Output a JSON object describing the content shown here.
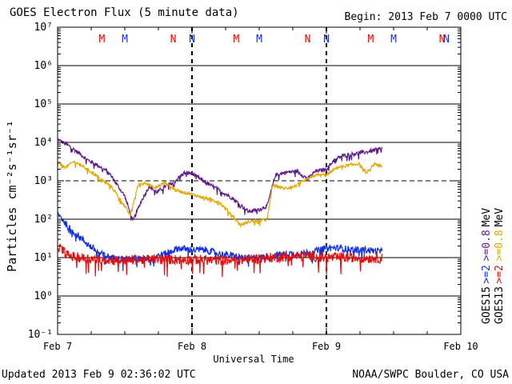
{
  "title": "GOES Electron Flux (5 minute data)",
  "begin": "Begin: 2013 Feb 7 0000 UTC",
  "updated": "Updated 2013 Feb  9 02:36:02 UTC",
  "source": "NOAA/SWPC Boulder, CO USA",
  "colors": {
    "goes15_ge08": "#5c1a8c",
    "goes13_ge08": "#e0a800",
    "goes15_ge2": "#1030e0",
    "goes13_ge2": "#e01010"
  },
  "chart_data": {
    "type": "line",
    "title": "GOES Electron Flux (5 minute data)",
    "xlabel": "Universal Time",
    "ylabel": "Particles cm⁻²s⁻¹sr⁻¹",
    "x_unit": "days since 2013 Feb 7 0000 UTC",
    "xlim": [
      0,
      3
    ],
    "ylim_log10": [
      -1,
      7
    ],
    "yscale": "log",
    "x_ticks": [
      {
        "x": 0,
        "label": "Feb 7"
      },
      {
        "x": 1,
        "label": "Feb 8"
      },
      {
        "x": 2,
        "label": "Feb 9"
      },
      {
        "x": 3,
        "label": "Feb 10"
      }
    ],
    "y_ticks": [
      {
        "exp": 7,
        "label": "10⁷"
      },
      {
        "exp": 6,
        "label": "10⁶"
      },
      {
        "exp": 5,
        "label": "10⁵"
      },
      {
        "exp": 4,
        "label": "10⁴"
      },
      {
        "exp": 3,
        "label": "10³"
      },
      {
        "exp": 2,
        "label": "10²"
      },
      {
        "exp": 1,
        "label": "10¹"
      },
      {
        "exp": 0,
        "label": "10⁰"
      },
      {
        "exp": -1,
        "label": "10⁻¹"
      }
    ],
    "threshold_log10": 3,
    "day_boundaries": [
      1,
      2
    ],
    "markers": [
      {
        "x": 0.33,
        "label": "M",
        "color": "#e01010"
      },
      {
        "x": 0.5,
        "label": "M",
        "color": "#1030e0"
      },
      {
        "x": 0.86,
        "label": "N",
        "color": "#e01010"
      },
      {
        "x": 1.0,
        "label": "N",
        "color": "#1030e0"
      },
      {
        "x": 1.33,
        "label": "M",
        "color": "#e01010"
      },
      {
        "x": 1.5,
        "label": "M",
        "color": "#1030e0"
      },
      {
        "x": 1.86,
        "label": "N",
        "color": "#e01010"
      },
      {
        "x": 2.0,
        "label": "N",
        "color": "#1030e0"
      },
      {
        "x": 2.33,
        "label": "M",
        "color": "#e01010"
      },
      {
        "x": 2.5,
        "label": "M",
        "color": "#1030e0"
      },
      {
        "x": 2.86,
        "label": "N",
        "color": "#e01010"
      },
      {
        "x": 3.0,
        "label": "N",
        "color": "#1030e0"
      }
    ],
    "legend": [
      {
        "label": "GOES15",
        "color": "#000000"
      },
      {
        "label": ">=2",
        "color": "#1030e0"
      },
      {
        "label": ">=0.8",
        "color": "#5c1a8c"
      },
      {
        "label": "MeV",
        "color": "#000000"
      },
      {
        "label": "GOES13",
        "color": "#000000"
      },
      {
        "label": ">=2",
        "color": "#e01010"
      },
      {
        "label": ">=0.8",
        "color": "#e0a800"
      },
      {
        "label": "MeV",
        "color": "#000000"
      }
    ],
    "series": [
      {
        "name": "GOES15 >=0.8 MeV",
        "color": "#5c1a8c",
        "noise": 0.05,
        "points": [
          [
            0,
            4.08
          ],
          [
            0.08,
            3.92
          ],
          [
            0.16,
            3.72
          ],
          [
            0.22,
            3.55
          ],
          [
            0.3,
            3.4
          ],
          [
            0.38,
            3.22
          ],
          [
            0.5,
            2.6
          ],
          [
            0.56,
            1.95
          ],
          [
            0.62,
            2.45
          ],
          [
            0.68,
            2.85
          ],
          [
            0.74,
            2.7
          ],
          [
            0.8,
            2.85
          ],
          [
            0.86,
            2.95
          ],
          [
            0.94,
            3.2
          ],
          [
            1.0,
            3.2
          ],
          [
            1.08,
            3.0
          ],
          [
            1.18,
            2.8
          ],
          [
            1.3,
            2.55
          ],
          [
            1.42,
            2.2
          ],
          [
            1.5,
            2.25
          ],
          [
            1.56,
            2.35
          ],
          [
            1.62,
            3.15
          ],
          [
            1.7,
            3.22
          ],
          [
            1.78,
            3.25
          ],
          [
            1.86,
            3.05
          ],
          [
            1.92,
            3.25
          ],
          [
            2.0,
            3.3
          ],
          [
            2.06,
            3.55
          ],
          [
            2.12,
            3.65
          ],
          [
            2.2,
            3.7
          ],
          [
            2.3,
            3.75
          ],
          [
            2.42,
            3.85
          ]
        ]
      },
      {
        "name": "GOES13 >=0.8 MeV",
        "color": "#e0a800",
        "noise": 0.04,
        "points": [
          [
            0,
            3.45
          ],
          [
            0.06,
            3.35
          ],
          [
            0.12,
            3.5
          ],
          [
            0.18,
            3.4
          ],
          [
            0.26,
            3.2
          ],
          [
            0.34,
            3.0
          ],
          [
            0.4,
            2.85
          ],
          [
            0.48,
            2.45
          ],
          [
            0.54,
            2.1
          ],
          [
            0.6,
            2.9
          ],
          [
            0.66,
            2.95
          ],
          [
            0.72,
            2.8
          ],
          [
            0.8,
            2.95
          ],
          [
            0.88,
            2.75
          ],
          [
            1.0,
            2.65
          ],
          [
            1.1,
            2.55
          ],
          [
            1.2,
            2.45
          ],
          [
            1.3,
            2.1
          ],
          [
            1.36,
            1.85
          ],
          [
            1.44,
            1.95
          ],
          [
            1.5,
            1.95
          ],
          [
            1.56,
            2.0
          ],
          [
            1.6,
            2.9
          ],
          [
            1.68,
            2.8
          ],
          [
            1.76,
            2.85
          ],
          [
            1.84,
            3.0
          ],
          [
            1.92,
            3.15
          ],
          [
            2.0,
            3.15
          ],
          [
            2.08,
            3.35
          ],
          [
            2.16,
            3.4
          ],
          [
            2.24,
            3.45
          ],
          [
            2.3,
            3.2
          ],
          [
            2.36,
            3.45
          ],
          [
            2.42,
            3.35
          ]
        ]
      },
      {
        "name": "GOES15 >=2 MeV",
        "color": "#1030e0",
        "noise": 0.09,
        "points": [
          [
            0,
            2.15
          ],
          [
            0.08,
            1.8
          ],
          [
            0.16,
            1.55
          ],
          [
            0.24,
            1.3
          ],
          [
            0.32,
            1.1
          ],
          [
            0.4,
            1.0
          ],
          [
            0.5,
            0.95
          ],
          [
            0.6,
            0.97
          ],
          [
            0.7,
            1.0
          ],
          [
            0.8,
            1.1
          ],
          [
            0.9,
            1.25
          ],
          [
            1.0,
            1.2
          ],
          [
            1.1,
            1.2
          ],
          [
            1.2,
            1.1
          ],
          [
            1.3,
            1.05
          ],
          [
            1.4,
            0.97
          ],
          [
            1.5,
            1.0
          ],
          [
            1.6,
            1.05
          ],
          [
            1.7,
            1.1
          ],
          [
            1.8,
            1.1
          ],
          [
            1.9,
            1.15
          ],
          [
            2.0,
            1.25
          ],
          [
            2.1,
            1.25
          ],
          [
            2.2,
            1.2
          ],
          [
            2.3,
            1.2
          ],
          [
            2.42,
            1.15
          ]
        ]
      },
      {
        "name": "GOES13 >=2 MeV",
        "color": "#e01010",
        "noise": 0.13,
        "points": [
          [
            0,
            1.3
          ],
          [
            0.08,
            1.05
          ],
          [
            0.16,
            1.0
          ],
          [
            0.3,
            0.95
          ],
          [
            0.5,
            0.93
          ],
          [
            0.7,
            0.95
          ],
          [
            0.9,
            0.95
          ],
          [
            1.0,
            0.95
          ],
          [
            1.2,
            0.93
          ],
          [
            1.4,
            0.95
          ],
          [
            1.6,
            1.0
          ],
          [
            1.8,
            1.05
          ],
          [
            2.0,
            1.0
          ],
          [
            2.2,
            1.0
          ],
          [
            2.42,
            0.98
          ]
        ]
      }
    ]
  }
}
